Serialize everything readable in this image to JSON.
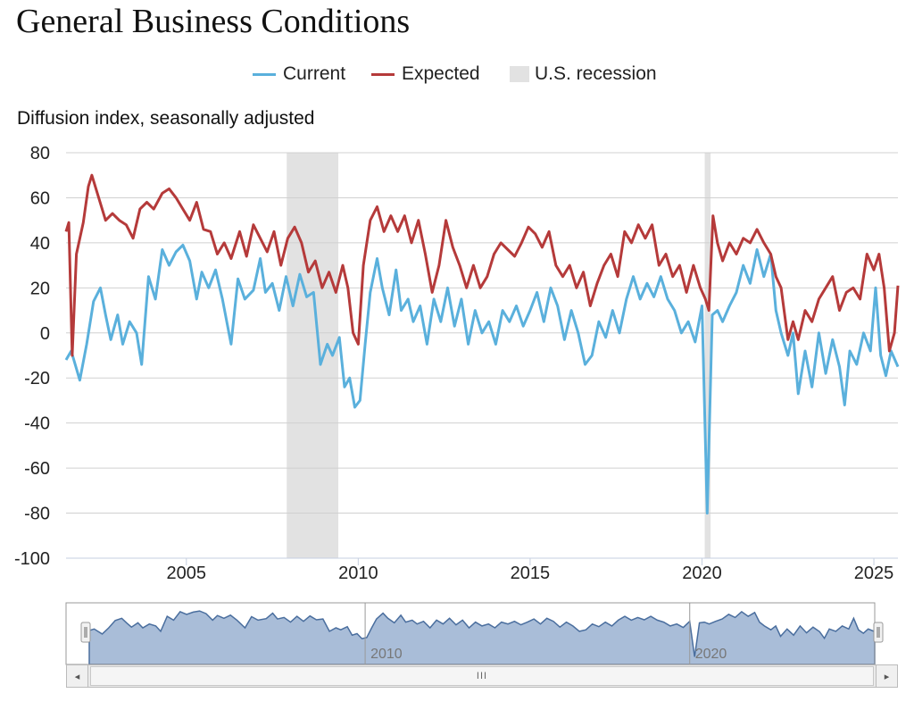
{
  "title": "General Business Conditions",
  "legend": [
    {
      "label": "Current",
      "color": "#5ab0dc",
      "kind": "line"
    },
    {
      "label": "Expected",
      "color": "#b53a3a",
      "kind": "line"
    },
    {
      "label": "U.S. recession",
      "color": "#e2e2e2",
      "kind": "box"
    }
  ],
  "navigator": {
    "labels": [
      "2010",
      "2020"
    ]
  },
  "scrollbar": {
    "grip": "III",
    "left_arrow": "◂",
    "right_arrow": "▸"
  },
  "chart_data": {
    "type": "line",
    "title": "General Business Conditions",
    "ylabel": "Diffusion index, seasonally adjusted",
    "xlabel": "",
    "ylim": [
      -100,
      80
    ],
    "xlim": [
      2001.5,
      2025.7
    ],
    "yticks": [
      80,
      60,
      40,
      20,
      0,
      -20,
      -40,
      -60,
      -80,
      -100
    ],
    "xticks": [
      2005,
      2010,
      2015,
      2020,
      2025
    ],
    "grid": true,
    "legend_position": "top-center",
    "recessions": [
      [
        2007.92,
        2009.42
      ],
      [
        2020.08,
        2020.25
      ]
    ],
    "series": [
      {
        "name": "Current",
        "color": "#5ab0dc",
        "points": [
          [
            2001.5,
            -12
          ],
          [
            2001.65,
            -8
          ],
          [
            2001.9,
            -21
          ],
          [
            2002.1,
            -5
          ],
          [
            2002.3,
            14
          ],
          [
            2002.5,
            20
          ],
          [
            2002.65,
            8
          ],
          [
            2002.8,
            -3
          ],
          [
            2003.0,
            8
          ],
          [
            2003.15,
            -5
          ],
          [
            2003.35,
            5
          ],
          [
            2003.55,
            0
          ],
          [
            2003.7,
            -14
          ],
          [
            2003.9,
            25
          ],
          [
            2004.1,
            15
          ],
          [
            2004.3,
            37
          ],
          [
            2004.5,
            30
          ],
          [
            2004.7,
            36
          ],
          [
            2004.9,
            39
          ],
          [
            2005.1,
            32
          ],
          [
            2005.3,
            15
          ],
          [
            2005.45,
            27
          ],
          [
            2005.65,
            20
          ],
          [
            2005.85,
            28
          ],
          [
            2006.05,
            15
          ],
          [
            2006.3,
            -5
          ],
          [
            2006.5,
            24
          ],
          [
            2006.7,
            15
          ],
          [
            2006.95,
            19
          ],
          [
            2007.15,
            33
          ],
          [
            2007.3,
            18
          ],
          [
            2007.5,
            22
          ],
          [
            2007.7,
            10
          ],
          [
            2007.9,
            25
          ],
          [
            2008.1,
            12
          ],
          [
            2008.3,
            26
          ],
          [
            2008.5,
            16
          ],
          [
            2008.7,
            18
          ],
          [
            2008.9,
            -14
          ],
          [
            2009.1,
            -5
          ],
          [
            2009.25,
            -10
          ],
          [
            2009.45,
            -2
          ],
          [
            2009.6,
            -24
          ],
          [
            2009.75,
            -20
          ],
          [
            2009.9,
            -33
          ],
          [
            2010.05,
            -30
          ],
          [
            2010.2,
            -5
          ],
          [
            2010.35,
            18
          ],
          [
            2010.55,
            33
          ],
          [
            2010.7,
            20
          ],
          [
            2010.9,
            8
          ],
          [
            2011.1,
            28
          ],
          [
            2011.25,
            10
          ],
          [
            2011.45,
            15
          ],
          [
            2011.6,
            5
          ],
          [
            2011.8,
            12
          ],
          [
            2012.0,
            -5
          ],
          [
            2012.2,
            15
          ],
          [
            2012.4,
            5
          ],
          [
            2012.6,
            20
          ],
          [
            2012.8,
            3
          ],
          [
            2013.0,
            15
          ],
          [
            2013.2,
            -5
          ],
          [
            2013.4,
            10
          ],
          [
            2013.6,
            0
          ],
          [
            2013.8,
            5
          ],
          [
            2014.0,
            -5
          ],
          [
            2014.2,
            10
          ],
          [
            2014.4,
            5
          ],
          [
            2014.6,
            12
          ],
          [
            2014.8,
            3
          ],
          [
            2015.0,
            10
          ],
          [
            2015.2,
            18
          ],
          [
            2015.4,
            5
          ],
          [
            2015.6,
            20
          ],
          [
            2015.8,
            12
          ],
          [
            2016.0,
            -3
          ],
          [
            2016.2,
            10
          ],
          [
            2016.4,
            0
          ],
          [
            2016.6,
            -14
          ],
          [
            2016.8,
            -10
          ],
          [
            2017.0,
            5
          ],
          [
            2017.2,
            -2
          ],
          [
            2017.4,
            10
          ],
          [
            2017.6,
            0
          ],
          [
            2017.8,
            15
          ],
          [
            2018.0,
            25
          ],
          [
            2018.2,
            15
          ],
          [
            2018.4,
            22
          ],
          [
            2018.6,
            16
          ],
          [
            2018.8,
            25
          ],
          [
            2019.0,
            15
          ],
          [
            2019.2,
            10
          ],
          [
            2019.4,
            0
          ],
          [
            2019.6,
            5
          ],
          [
            2019.8,
            -4
          ],
          [
            2020.0,
            12
          ],
          [
            2020.15,
            -80
          ],
          [
            2020.3,
            8
          ],
          [
            2020.45,
            10
          ],
          [
            2020.6,
            5
          ],
          [
            2020.8,
            12
          ],
          [
            2021.0,
            18
          ],
          [
            2021.2,
            30
          ],
          [
            2021.4,
            22
          ],
          [
            2021.6,
            37
          ],
          [
            2021.8,
            25
          ],
          [
            2022.0,
            35
          ],
          [
            2022.15,
            10
          ],
          [
            2022.3,
            0
          ],
          [
            2022.5,
            -10
          ],
          [
            2022.65,
            0
          ],
          [
            2022.8,
            -27
          ],
          [
            2023.0,
            -8
          ],
          [
            2023.2,
            -24
          ],
          [
            2023.4,
            0
          ],
          [
            2023.6,
            -18
          ],
          [
            2023.8,
            -3
          ],
          [
            2024.0,
            -15
          ],
          [
            2024.15,
            -32
          ],
          [
            2024.3,
            -8
          ],
          [
            2024.5,
            -14
          ],
          [
            2024.7,
            0
          ],
          [
            2024.9,
            -8
          ],
          [
            2025.05,
            20
          ],
          [
            2025.2,
            -10
          ],
          [
            2025.35,
            -19
          ],
          [
            2025.5,
            -8
          ],
          [
            2025.7,
            -15
          ]
        ]
      },
      {
        "name": "Expected",
        "color": "#b53a3a",
        "points": [
          [
            2001.5,
            45
          ],
          [
            2001.58,
            49
          ],
          [
            2001.68,
            -10
          ],
          [
            2001.8,
            35
          ],
          [
            2002.0,
            49
          ],
          [
            2002.15,
            65
          ],
          [
            2002.25,
            70
          ],
          [
            2002.45,
            60
          ],
          [
            2002.65,
            50
          ],
          [
            2002.85,
            53
          ],
          [
            2003.05,
            50
          ],
          [
            2003.25,
            48
          ],
          [
            2003.45,
            42
          ],
          [
            2003.65,
            55
          ],
          [
            2003.85,
            58
          ],
          [
            2004.05,
            55
          ],
          [
            2004.3,
            62
          ],
          [
            2004.5,
            64
          ],
          [
            2004.7,
            60
          ],
          [
            2004.9,
            55
          ],
          [
            2005.1,
            50
          ],
          [
            2005.3,
            58
          ],
          [
            2005.5,
            46
          ],
          [
            2005.7,
            45
          ],
          [
            2005.9,
            35
          ],
          [
            2006.1,
            40
          ],
          [
            2006.3,
            33
          ],
          [
            2006.55,
            45
          ],
          [
            2006.75,
            34
          ],
          [
            2006.95,
            48
          ],
          [
            2007.15,
            42
          ],
          [
            2007.35,
            36
          ],
          [
            2007.55,
            45
          ],
          [
            2007.75,
            30
          ],
          [
            2007.95,
            42
          ],
          [
            2008.15,
            47
          ],
          [
            2008.35,
            40
          ],
          [
            2008.55,
            27
          ],
          [
            2008.75,
            32
          ],
          [
            2008.95,
            20
          ],
          [
            2009.15,
            27
          ],
          [
            2009.35,
            18
          ],
          [
            2009.55,
            30
          ],
          [
            2009.7,
            20
          ],
          [
            2009.85,
            0
          ],
          [
            2010.0,
            -5
          ],
          [
            2010.15,
            30
          ],
          [
            2010.35,
            50
          ],
          [
            2010.55,
            56
          ],
          [
            2010.75,
            45
          ],
          [
            2010.95,
            52
          ],
          [
            2011.15,
            45
          ],
          [
            2011.35,
            52
          ],
          [
            2011.55,
            40
          ],
          [
            2011.75,
            50
          ],
          [
            2011.95,
            35
          ],
          [
            2012.15,
            18
          ],
          [
            2012.35,
            30
          ],
          [
            2012.55,
            50
          ],
          [
            2012.75,
            38
          ],
          [
            2012.95,
            30
          ],
          [
            2013.15,
            20
          ],
          [
            2013.35,
            30
          ],
          [
            2013.55,
            20
          ],
          [
            2013.75,
            25
          ],
          [
            2013.95,
            35
          ],
          [
            2014.15,
            40
          ],
          [
            2014.35,
            37
          ],
          [
            2014.55,
            34
          ],
          [
            2014.75,
            40
          ],
          [
            2014.95,
            47
          ],
          [
            2015.15,
            44
          ],
          [
            2015.35,
            38
          ],
          [
            2015.55,
            45
          ],
          [
            2015.75,
            30
          ],
          [
            2015.95,
            25
          ],
          [
            2016.15,
            30
          ],
          [
            2016.35,
            20
          ],
          [
            2016.55,
            27
          ],
          [
            2016.75,
            12
          ],
          [
            2016.95,
            22
          ],
          [
            2017.15,
            30
          ],
          [
            2017.35,
            35
          ],
          [
            2017.55,
            25
          ],
          [
            2017.75,
            45
          ],
          [
            2017.95,
            40
          ],
          [
            2018.15,
            48
          ],
          [
            2018.35,
            42
          ],
          [
            2018.55,
            48
          ],
          [
            2018.75,
            30
          ],
          [
            2018.95,
            35
          ],
          [
            2019.15,
            25
          ],
          [
            2019.35,
            30
          ],
          [
            2019.55,
            18
          ],
          [
            2019.75,
            30
          ],
          [
            2019.95,
            20
          ],
          [
            2020.1,
            15
          ],
          [
            2020.2,
            10
          ],
          [
            2020.32,
            52
          ],
          [
            2020.45,
            40
          ],
          [
            2020.6,
            32
          ],
          [
            2020.8,
            40
          ],
          [
            2021.0,
            35
          ],
          [
            2021.2,
            42
          ],
          [
            2021.4,
            40
          ],
          [
            2021.6,
            46
          ],
          [
            2021.8,
            40
          ],
          [
            2022.0,
            35
          ],
          [
            2022.15,
            25
          ],
          [
            2022.3,
            20
          ],
          [
            2022.5,
            -3
          ],
          [
            2022.65,
            5
          ],
          [
            2022.8,
            -3
          ],
          [
            2023.0,
            10
          ],
          [
            2023.2,
            5
          ],
          [
            2023.4,
            15
          ],
          [
            2023.6,
            20
          ],
          [
            2023.8,
            25
          ],
          [
            2024.0,
            10
          ],
          [
            2024.2,
            18
          ],
          [
            2024.4,
            20
          ],
          [
            2024.6,
            15
          ],
          [
            2024.8,
            35
          ],
          [
            2025.0,
            28
          ],
          [
            2025.15,
            35
          ],
          [
            2025.3,
            20
          ],
          [
            2025.45,
            -8
          ],
          [
            2025.6,
            0
          ],
          [
            2025.7,
            21
          ]
        ]
      }
    ]
  }
}
